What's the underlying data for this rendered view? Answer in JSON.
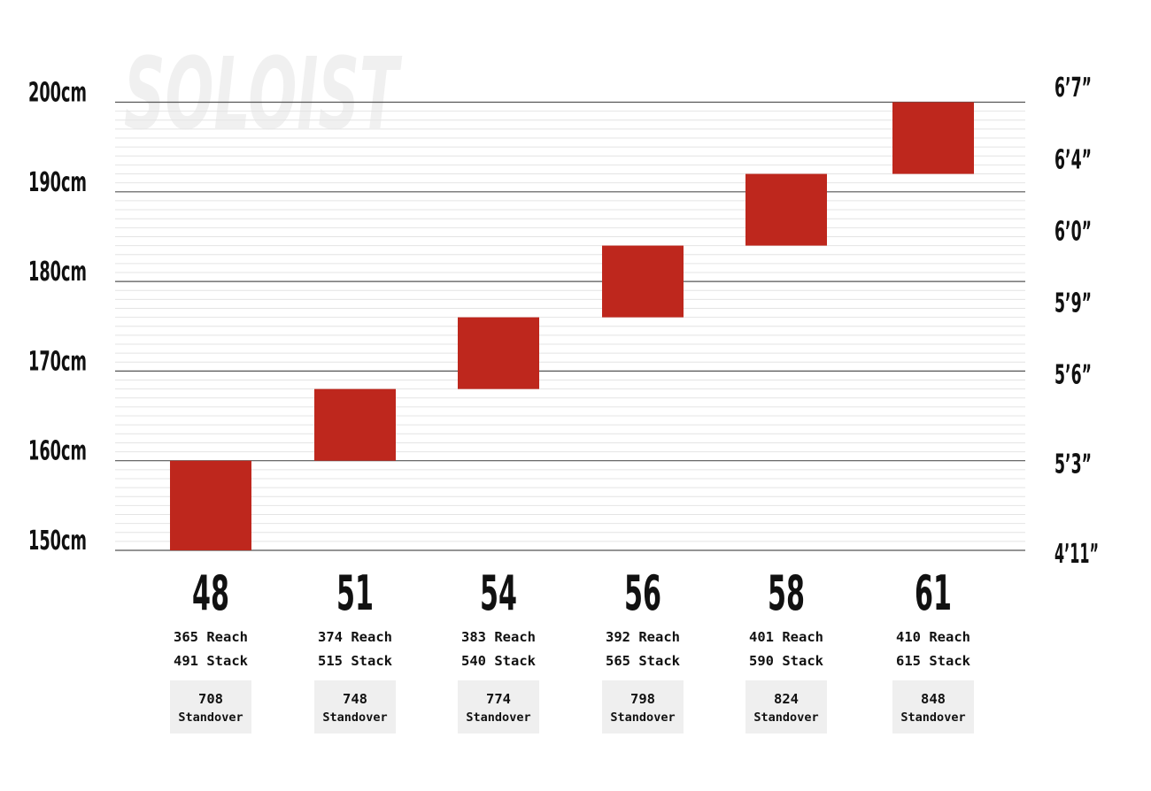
{
  "watermark": "SOLOIST",
  "colors": {
    "bar": "#be271d",
    "major_grid": "#555555",
    "minor_grid": "#e4e4e4",
    "standover_box": "#efefef",
    "text": "#111111",
    "watermark": "#f0f0f0"
  },
  "chart_data": {
    "type": "bar",
    "subtype": "floating-range",
    "categories": [
      "48",
      "51",
      "54",
      "56",
      "58",
      "61"
    ],
    "series": [
      {
        "ranges": [
          [
            150,
            160
          ],
          [
            160,
            168
          ],
          [
            168,
            176
          ],
          [
            176,
            184
          ],
          [
            184,
            192
          ],
          [
            192,
            200
          ]
        ]
      }
    ],
    "ylim": [
      150,
      200
    ],
    "y_ticks_cm": [
      "150cm",
      "160cm",
      "170cm",
      "180cm",
      "190cm",
      "200cm"
    ],
    "y_ticks_cm_values": [
      150,
      160,
      170,
      180,
      190,
      200
    ],
    "y_ticks_ft": [
      "4’11”",
      "5’3”",
      "5’6”",
      "5’9”",
      "6’0”",
      "6’4”",
      "6’7”"
    ],
    "y_ticks_ft_values": [
      150,
      160,
      170,
      178,
      186,
      194,
      202
    ],
    "grid": true,
    "minor_grid_step_cm": 1
  },
  "sizes": [
    {
      "size": "48",
      "reach": "365 Reach",
      "stack": "491 Stack",
      "standover_value": "708",
      "standover_label": "Standover"
    },
    {
      "size": "51",
      "reach": "374 Reach",
      "stack": "515 Stack",
      "standover_value": "748",
      "standover_label": "Standover"
    },
    {
      "size": "54",
      "reach": "383 Reach",
      "stack": "540 Stack",
      "standover_value": "774",
      "standover_label": "Standover"
    },
    {
      "size": "56",
      "reach": "392 Reach",
      "stack": "565 Stack",
      "standover_value": "798",
      "standover_label": "Standover"
    },
    {
      "size": "58",
      "reach": "401 Reach",
      "stack": "590 Stack",
      "standover_value": "824",
      "standover_label": "Standover"
    },
    {
      "size": "61",
      "reach": "410 Reach",
      "stack": "615 Stack",
      "standover_value": "848",
      "standover_label": "Standover"
    }
  ]
}
